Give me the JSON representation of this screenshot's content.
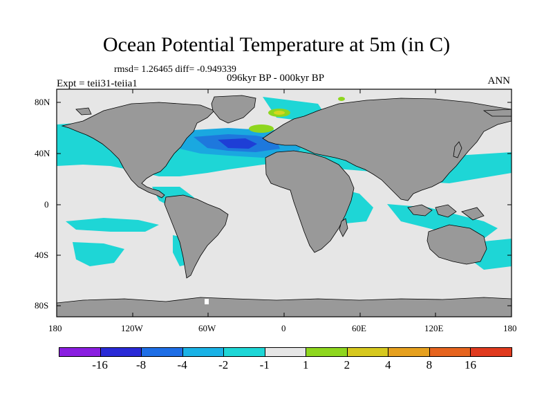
{
  "title": "Ocean Potential Temperature at 5m (in C)",
  "stats": "rmsd= 1.26465 diff= -0.949339",
  "experiment": "Expt = teii31-teiia1",
  "period": "096kyr BP - 000kyr BP",
  "season": "ANN",
  "axes": {
    "lon_ticks": [
      "180",
      "120W",
      "60W",
      "0",
      "60E",
      "120E",
      "180"
    ],
    "lat_ticks": [
      "80N",
      "40N",
      "0",
      "40S",
      "80S"
    ]
  },
  "colors": {
    "land": "#999999",
    "neutral": "#e6e6e6",
    "cyan": "#1ed6d6",
    "light_blue": "#1aa8e0",
    "blue": "#1e78dd",
    "dark_blue": "#1e3ed6",
    "green": "#8ed61e",
    "yellow": "#d6d61e"
  },
  "colorbar": {
    "boxes": [
      "#8a1ee0",
      "#2a2ad6",
      "#1e6ee6",
      "#1ab2e6",
      "#1ed6d6",
      "#e6e6e6",
      "#8ed61e",
      "#d6c81e",
      "#e6a01e",
      "#e6641e",
      "#e03a1e"
    ],
    "labels": [
      "-16",
      "-8",
      "-4",
      "-2",
      "-1",
      "1",
      "2",
      "4",
      "8",
      "16"
    ]
  }
}
